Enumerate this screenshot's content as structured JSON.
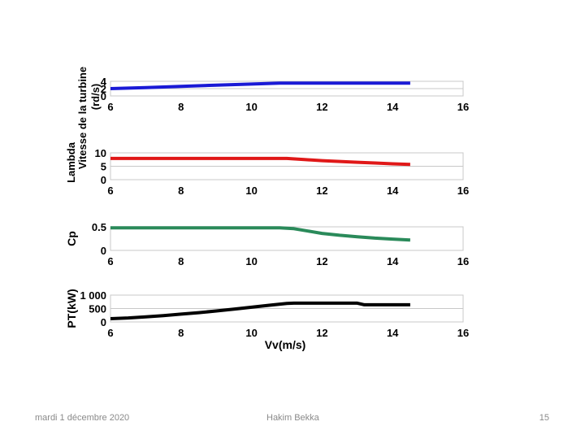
{
  "slide": {
    "footer_date": "mardi 1 décembre 2020",
    "footer_author": "Hakim Bekka",
    "page_number": "15"
  },
  "colors": {
    "lambda": "#1a1ad6",
    "speed": "#e01818",
    "cp": "#2a8a5a",
    "power": "#000000",
    "axis": "#000000",
    "grid": "#c8c8c8"
  },
  "chart_data": [
    {
      "type": "line",
      "id": "lambda",
      "ylabel_lines": [
        "Lambda",
        "Vitesse de la turbine",
        "(rd/s)"
      ],
      "ylabel": "Lambda Vitesse de la turbine (rd/s)",
      "xlim": [
        6,
        16
      ],
      "ylim": [
        0,
        4
      ],
      "xticks": [
        "6",
        "8",
        "10",
        "12",
        "14",
        "16"
      ],
      "xtick_values": [
        6,
        8,
        10,
        12,
        14,
        16
      ],
      "yticks": [
        "0",
        "2",
        "4"
      ],
      "ytick_values": [
        0,
        2,
        4
      ],
      "series": [
        {
          "name": "lambda",
          "x": [
            6,
            7,
            8,
            9,
            10,
            10.8,
            11,
            12,
            13,
            14,
            14.5
          ],
          "y": [
            2.0,
            2.3,
            2.6,
            2.95,
            3.25,
            3.5,
            3.5,
            3.5,
            3.5,
            3.5,
            3.5
          ]
        }
      ]
    },
    {
      "type": "line",
      "id": "speed",
      "ylabel": "",
      "xlim": [
        6,
        16
      ],
      "ylim": [
        0,
        10
      ],
      "xticks": [
        "6",
        "8",
        "10",
        "12",
        "14",
        "16"
      ],
      "xtick_values": [
        6,
        8,
        10,
        12,
        14,
        16
      ],
      "yticks": [
        "0",
        "5",
        "10"
      ],
      "ytick_values": [
        0,
        5,
        10
      ],
      "series": [
        {
          "name": "speed",
          "x": [
            6,
            7,
            8,
            9,
            10,
            11,
            11.5,
            12,
            12.5,
            13,
            13.5,
            14,
            14.5
          ],
          "y": [
            7.9,
            7.9,
            7.9,
            7.9,
            7.9,
            7.9,
            7.5,
            7.1,
            6.8,
            6.5,
            6.2,
            5.9,
            5.7
          ]
        }
      ]
    },
    {
      "type": "line",
      "id": "cp",
      "ylabel": "Cp",
      "xlim": [
        6,
        16
      ],
      "ylim": [
        0,
        0.5
      ],
      "xticks": [
        "6",
        "8",
        "10",
        "12",
        "14",
        "16"
      ],
      "xtick_values": [
        6,
        8,
        10,
        12,
        14,
        16
      ],
      "yticks": [
        "0",
        "0.5"
      ],
      "ytick_values": [
        0,
        0.5
      ],
      "series": [
        {
          "name": "cp",
          "x": [
            6,
            7,
            8,
            9,
            10,
            10.8,
            11.2,
            11.6,
            12,
            12.5,
            13,
            13.5,
            14,
            14.5
          ],
          "y": [
            0.48,
            0.48,
            0.48,
            0.48,
            0.48,
            0.48,
            0.46,
            0.41,
            0.36,
            0.32,
            0.29,
            0.26,
            0.24,
            0.22
          ]
        }
      ]
    },
    {
      "type": "line",
      "id": "power",
      "ylabel": "PT(kW)",
      "xlabel": "Vv(m/s)",
      "xlim": [
        6,
        16
      ],
      "ylim": [
        0,
        1000
      ],
      "xticks": [
        "6",
        "8",
        "10",
        "12",
        "14",
        "16"
      ],
      "xtick_values": [
        6,
        8,
        10,
        12,
        14,
        16
      ],
      "yticks": [
        "0",
        "500",
        "1 000"
      ],
      "ytick_values": [
        0,
        500,
        1000
      ],
      "series": [
        {
          "name": "power",
          "x": [
            6,
            6.5,
            7,
            7.5,
            8,
            8.5,
            9,
            9.5,
            10,
            10.5,
            11,
            11.2,
            12,
            13,
            13.2,
            14,
            14.5
          ],
          "y": [
            120,
            150,
            190,
            235,
            290,
            345,
            410,
            475,
            550,
            620,
            690,
            700,
            700,
            700,
            640,
            640,
            640
          ]
        }
      ]
    }
  ]
}
